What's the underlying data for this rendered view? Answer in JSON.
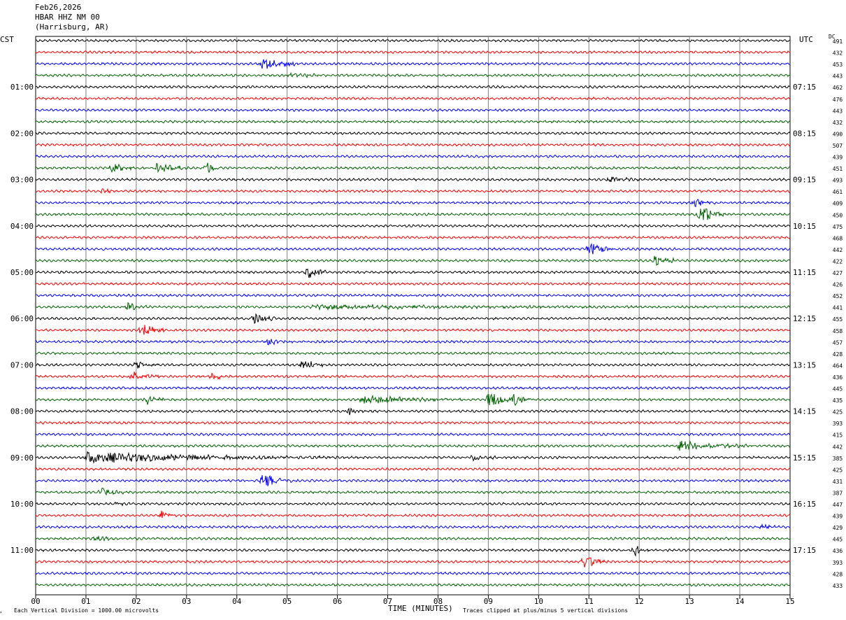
{
  "header": {
    "date": "Feb26,2026",
    "station": "HBAR HHZ NM 00",
    "location": "(Harrisburg, AR)"
  },
  "left_axis_title": "CST",
  "right_axis_title": "UTC",
  "dc_header": "DC",
  "footer": {
    "scale_note": "Each Vertical Division = 1000.00 microvolts",
    "xlabel": "TIME (MINUTES)",
    "clip_note": "Traces clipped at plus/minus 5 vertical divisions"
  },
  "colors": {
    "trace_cycle": [
      "#000000",
      "#ff0000",
      "#0000ff",
      "#006400"
    ],
    "grid": "#808080",
    "frame": "#000000"
  },
  "chart_data": {
    "type": "line",
    "title": "HBAR HHZ NM 00",
    "xlabel": "TIME (MINUTES)",
    "xlim": [
      0,
      15
    ],
    "x_ticks": [
      "00",
      "01",
      "02",
      "03",
      "04",
      "05",
      "06",
      "07",
      "08",
      "09",
      "10",
      "11",
      "12",
      "13",
      "14",
      "15"
    ],
    "trace_count": 48,
    "left_hour_labels": [
      {
        "trace": 4,
        "label": "01:00"
      },
      {
        "trace": 8,
        "label": "02:00"
      },
      {
        "trace": 12,
        "label": "03:00"
      },
      {
        "trace": 16,
        "label": "04:00"
      },
      {
        "trace": 20,
        "label": "05:00"
      },
      {
        "trace": 24,
        "label": "06:00"
      },
      {
        "trace": 28,
        "label": "07:00"
      },
      {
        "trace": 32,
        "label": "08:00"
      },
      {
        "trace": 36,
        "label": "09:00"
      },
      {
        "trace": 40,
        "label": "10:00"
      },
      {
        "trace": 44,
        "label": "11:00"
      }
    ],
    "right_hour_labels": [
      {
        "trace": 4,
        "label": "07:15"
      },
      {
        "trace": 8,
        "label": "08:15"
      },
      {
        "trace": 12,
        "label": "09:15"
      },
      {
        "trace": 16,
        "label": "10:15"
      },
      {
        "trace": 20,
        "label": "11:15"
      },
      {
        "trace": 24,
        "label": "12:15"
      },
      {
        "trace": 28,
        "label": "13:15"
      },
      {
        "trace": 32,
        "label": "14:15"
      },
      {
        "trace": 36,
        "label": "15:15"
      },
      {
        "trace": 40,
        "label": "16:15"
      },
      {
        "trace": 44,
        "label": "17:15"
      }
    ],
    "dc_offsets": [
      491,
      432,
      453,
      443,
      462,
      476,
      443,
      432,
      490,
      507,
      439,
      451,
      493,
      461,
      409,
      450,
      475,
      468,
      442,
      422,
      427,
      426,
      452,
      441,
      455,
      458,
      457,
      428,
      464,
      436,
      445,
      435,
      425,
      393,
      415,
      442,
      385,
      425,
      431,
      387,
      447,
      439,
      429,
      445,
      436,
      393,
      428,
      433
    ],
    "events": [
      {
        "trace": 2,
        "minute": 4.5,
        "amp": 1.4,
        "dur": 0.9
      },
      {
        "trace": 3,
        "minute": 5.0,
        "amp": 0.5,
        "dur": 1.2
      },
      {
        "trace": 11,
        "minute": 1.5,
        "amp": 1.2,
        "dur": 0.5
      },
      {
        "trace": 11,
        "minute": 2.4,
        "amp": 1.0,
        "dur": 0.9
      },
      {
        "trace": 11,
        "minute": 3.4,
        "amp": 1.6,
        "dur": 0.3
      },
      {
        "trace": 12,
        "minute": 11.4,
        "amp": 0.9,
        "dur": 0.6
      },
      {
        "trace": 13,
        "minute": 1.3,
        "amp": 0.7,
        "dur": 0.3
      },
      {
        "trace": 14,
        "minute": 13.1,
        "amp": 0.8,
        "dur": 0.5
      },
      {
        "trace": 15,
        "minute": 13.2,
        "amp": 2.6,
        "dur": 0.5
      },
      {
        "trace": 18,
        "minute": 11.0,
        "amp": 2.2,
        "dur": 0.5
      },
      {
        "trace": 19,
        "minute": 12.3,
        "amp": 1.6,
        "dur": 0.5
      },
      {
        "trace": 20,
        "minute": 5.4,
        "amp": 1.8,
        "dur": 0.4
      },
      {
        "trace": 23,
        "minute": 1.8,
        "amp": 1.2,
        "dur": 0.4
      },
      {
        "trace": 23,
        "minute": 5.5,
        "amp": 0.5,
        "dur": 7.0
      },
      {
        "trace": 24,
        "minute": 4.3,
        "amp": 1.8,
        "dur": 0.5
      },
      {
        "trace": 25,
        "minute": 2.1,
        "amp": 2.2,
        "dur": 0.5
      },
      {
        "trace": 26,
        "minute": 4.6,
        "amp": 1.0,
        "dur": 0.5
      },
      {
        "trace": 28,
        "minute": 2.0,
        "amp": 1.0,
        "dur": 0.5
      },
      {
        "trace": 28,
        "minute": 5.3,
        "amp": 1.4,
        "dur": 0.5
      },
      {
        "trace": 29,
        "minute": 1.9,
        "amp": 1.4,
        "dur": 0.6
      },
      {
        "trace": 29,
        "minute": 3.5,
        "amp": 1.0,
        "dur": 0.4
      },
      {
        "trace": 31,
        "minute": 2.2,
        "amp": 1.2,
        "dur": 0.4
      },
      {
        "trace": 31,
        "minute": 6.5,
        "amp": 1.1,
        "dur": 2.0
      },
      {
        "trace": 31,
        "minute": 9.0,
        "amp": 2.6,
        "dur": 0.5
      },
      {
        "trace": 31,
        "minute": 9.5,
        "amp": 2.0,
        "dur": 0.4
      },
      {
        "trace": 32,
        "minute": 6.2,
        "amp": 1.0,
        "dur": 0.4
      },
      {
        "trace": 35,
        "minute": 12.8,
        "amp": 1.2,
        "dur": 1.5
      },
      {
        "trace": 36,
        "minute": 1.0,
        "amp": 1.3,
        "dur": 5.0
      },
      {
        "trace": 36,
        "minute": 8.7,
        "amp": 0.8,
        "dur": 0.5
      },
      {
        "trace": 38,
        "minute": 4.5,
        "amp": 1.8,
        "dur": 0.6
      },
      {
        "trace": 39,
        "minute": 1.3,
        "amp": 0.9,
        "dur": 0.6
      },
      {
        "trace": 40,
        "minute": 1.6,
        "amp": 0.7,
        "dur": 0.4
      },
      {
        "trace": 41,
        "minute": 2.5,
        "amp": 1.4,
        "dur": 0.3
      },
      {
        "trace": 42,
        "minute": 14.4,
        "amp": 0.9,
        "dur": 0.4
      },
      {
        "trace": 43,
        "minute": 1.2,
        "amp": 0.7,
        "dur": 0.5
      },
      {
        "trace": 44,
        "minute": 11.9,
        "amp": 1.3,
        "dur": 0.4
      },
      {
        "trace": 45,
        "minute": 10.9,
        "amp": 1.8,
        "dur": 0.5
      }
    ]
  }
}
